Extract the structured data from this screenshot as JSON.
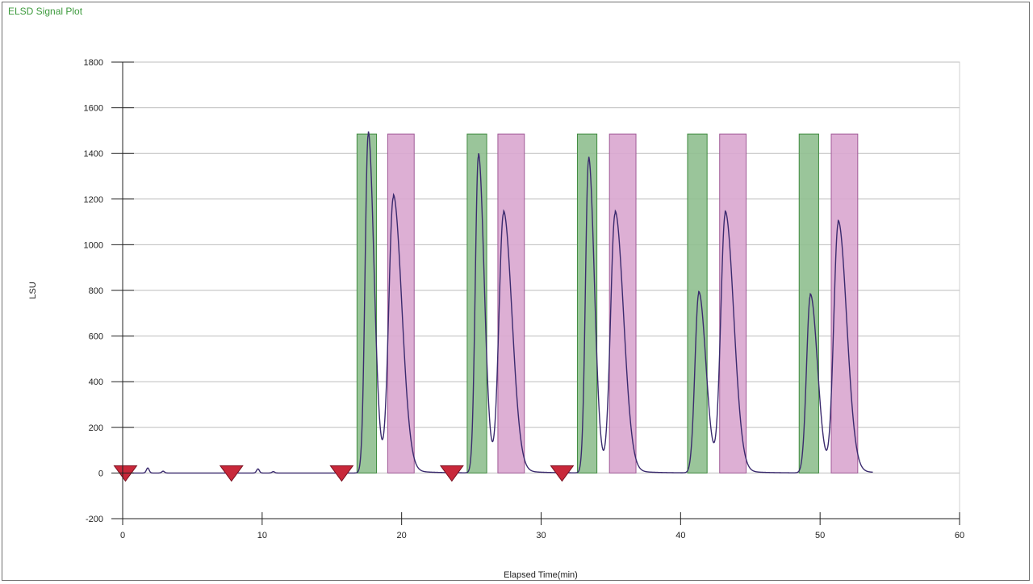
{
  "window": {
    "title": "ELSD Signal Plot"
  },
  "chart_data": {
    "type": "line",
    "title": "ELSD Signal Plot",
    "xlabel": "Elapsed Time(min)",
    "ylabel": "LSU",
    "xlim": [
      0,
      60
    ],
    "ylim": [
      -200,
      1800
    ],
    "x_ticks": [
      0,
      10,
      20,
      30,
      40,
      50,
      60
    ],
    "y_ticks": [
      -200,
      0,
      200,
      400,
      600,
      800,
      1000,
      1200,
      1400,
      1600,
      1800
    ],
    "grid": true,
    "colors": {
      "trace": "#3a2a6e",
      "fraction_a": "#8fbf8f",
      "fraction_b": "#d9a6cf",
      "marker": "#c8283a"
    },
    "baseline_bumps": [
      {
        "x": 1.8,
        "height": 22,
        "width": 0.1
      },
      {
        "x": 2.9,
        "height": 8,
        "width": 0.1
      },
      {
        "x": 9.7,
        "height": 18,
        "width": 0.1
      },
      {
        "x": 10.8,
        "height": 6,
        "width": 0.1
      }
    ],
    "peaks": [
      {
        "x": 17.6,
        "height": 1480,
        "width": 0.22
      },
      {
        "x": 19.4,
        "height": 1200,
        "width": 0.32
      },
      {
        "x": 25.5,
        "height": 1385,
        "width": 0.22
      },
      {
        "x": 27.3,
        "height": 1130,
        "width": 0.32
      },
      {
        "x": 33.4,
        "height": 1370,
        "width": 0.22
      },
      {
        "x": 35.3,
        "height": 1130,
        "width": 0.32
      },
      {
        "x": 41.3,
        "height": 785,
        "width": 0.27
      },
      {
        "x": 43.2,
        "height": 1130,
        "width": 0.32
      },
      {
        "x": 49.3,
        "height": 775,
        "width": 0.27
      },
      {
        "x": 51.3,
        "height": 1090,
        "width": 0.32
      }
    ],
    "trace_end": 53.8,
    "fractions": [
      {
        "start": 16.8,
        "end": 18.2,
        "top": 1485,
        "group": "a"
      },
      {
        "start": 19.0,
        "end": 20.9,
        "top": 1485,
        "group": "b"
      },
      {
        "start": 24.7,
        "end": 26.1,
        "top": 1485,
        "group": "a"
      },
      {
        "start": 26.9,
        "end": 28.8,
        "top": 1485,
        "group": "b"
      },
      {
        "start": 32.6,
        "end": 34.0,
        "top": 1485,
        "group": "a"
      },
      {
        "start": 34.9,
        "end": 36.8,
        "top": 1485,
        "group": "b"
      },
      {
        "start": 40.5,
        "end": 41.9,
        "top": 1485,
        "group": "a"
      },
      {
        "start": 42.8,
        "end": 44.7,
        "top": 1485,
        "group": "b"
      },
      {
        "start": 48.5,
        "end": 49.9,
        "top": 1485,
        "group": "a"
      },
      {
        "start": 50.8,
        "end": 52.7,
        "top": 1485,
        "group": "b"
      }
    ],
    "markers": [
      0.2,
      7.8,
      15.7,
      23.6,
      31.5
    ]
  }
}
